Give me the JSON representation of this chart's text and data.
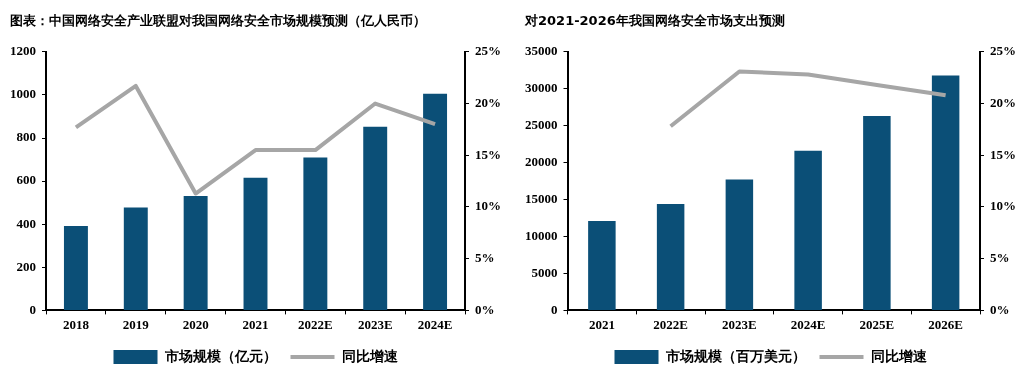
{
  "chart_data": [
    {
      "type": "bar",
      "title": "图表：中国网络安全产业联盟对我国网络安全市场规模预测（亿人民币）",
      "categories": [
        "2018",
        "2019",
        "2020",
        "2021",
        "2022E",
        "2023E",
        "2024E"
      ],
      "series": [
        {
          "name": "市场规模（亿元）",
          "color": "#0b4f77",
          "values": [
            392,
            477,
            531,
            616,
            709,
            852,
            1005
          ]
        },
        {
          "name": "同比增速",
          "type": "line",
          "axis": "y2",
          "color": "#a6a6a6",
          "values": [
            17.7,
            21.7,
            11.3,
            15.5,
            15.5,
            20.0,
            18.0
          ]
        }
      ],
      "ylim": [
        0,
        1200
      ],
      "yticks": [
        0,
        200,
        400,
        600,
        800,
        1000,
        1200
      ],
      "y2lim": [
        0,
        25
      ],
      "y2ticks": [
        {
          "value": 0,
          "label": "0%"
        },
        {
          "value": 5,
          "label": "5%"
        },
        {
          "value": 10,
          "label": "10%"
        },
        {
          "value": 15,
          "label": "15%"
        },
        {
          "value": 20,
          "label": "20%"
        },
        {
          "value": 25,
          "label": "25%"
        }
      ],
      "grid": false,
      "legend": "bottom",
      "marker": "none",
      "line_style": "solid"
    },
    {
      "type": "bar",
      "title": "对2021-2026年我国网络安全市场支出预测",
      "categories": [
        "2021",
        "2022E",
        "2023E",
        "2024E",
        "2025E",
        "2026E"
      ],
      "series": [
        {
          "name": "市场规模（百万美元）",
          "color": "#0b4f77",
          "values": [
            12100,
            14400,
            17700,
            21600,
            26300,
            31800
          ]
        },
        {
          "name": "同比增速",
          "type": "line",
          "axis": "y2",
          "color": "#a6a6a6",
          "values": [
            null,
            17.8,
            23.1,
            22.8,
            21.8,
            20.8
          ]
        }
      ],
      "ylim": [
        0,
        35000
      ],
      "yticks": [
        0,
        5000,
        10000,
        15000,
        20000,
        25000,
        30000,
        35000
      ],
      "y2lim": [
        0,
        25
      ],
      "y2ticks": [
        {
          "value": 0,
          "label": "0%"
        },
        {
          "value": 5,
          "label": "5%"
        },
        {
          "value": 10,
          "label": "10%"
        },
        {
          "value": 15,
          "label": "15%"
        },
        {
          "value": 20,
          "label": "20%"
        },
        {
          "value": 25,
          "label": "25%"
        }
      ],
      "grid": false,
      "legend": "bottom",
      "marker": "none",
      "line_style": "solid"
    }
  ]
}
